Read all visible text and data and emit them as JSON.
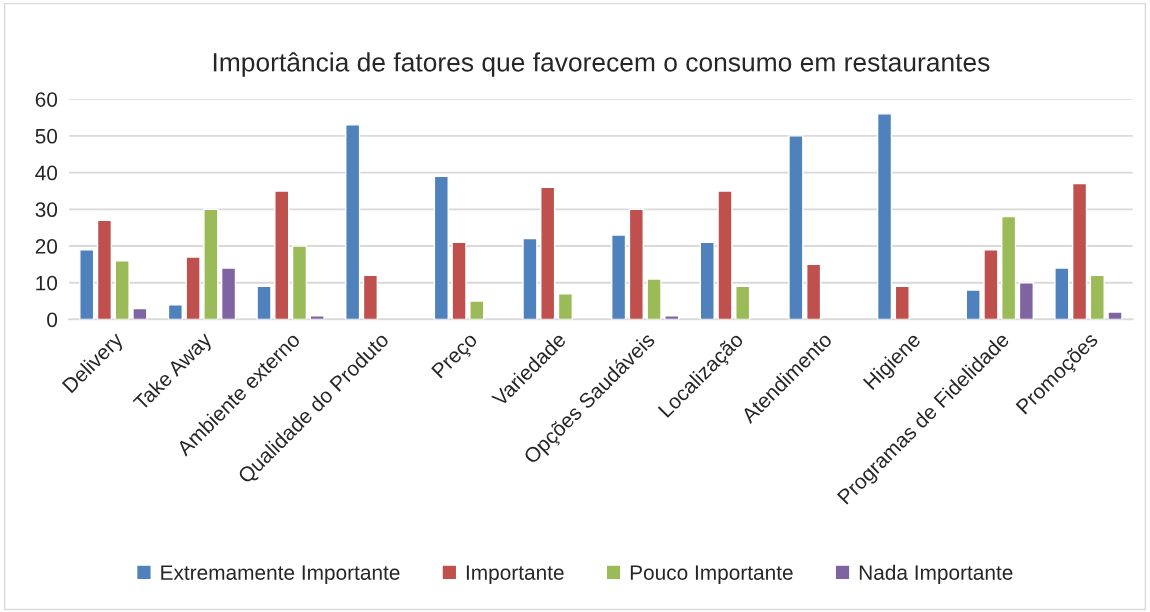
{
  "chart_data": {
    "type": "bar",
    "title": "Importância de fatores que favorecem o consumo em restaurantes",
    "categories": [
      "Delivery",
      "Take Away",
      "Ambiente externo",
      "Qualidade do Produto",
      "Preço",
      "Variedade",
      "Opções Saudáveis",
      "Localização",
      "Atendimento",
      "Higiene",
      "Programas de Fidelidade",
      "Promoções"
    ],
    "series": [
      {
        "name": "Extremamente Importante",
        "color": "#4f81bd",
        "values": [
          19,
          4,
          9,
          53,
          39,
          22,
          23,
          21,
          50,
          56,
          8,
          14
        ]
      },
      {
        "name": "Importante",
        "color": "#c0504d",
        "values": [
          27,
          17,
          35,
          12,
          21,
          36,
          30,
          35,
          15,
          9,
          19,
          37
        ]
      },
      {
        "name": "Pouco Importante",
        "color": "#9bbb59",
        "values": [
          16,
          30,
          20,
          null,
          5,
          7,
          11,
          9,
          null,
          null,
          28,
          12
        ]
      },
      {
        "name": "Nada Importante",
        "color": "#8064a2",
        "values": [
          3,
          14,
          1,
          null,
          null,
          null,
          1,
          null,
          null,
          null,
          10,
          2
        ]
      }
    ],
    "ylim": [
      0,
      60
    ],
    "yticks": [
      0,
      10,
      20,
      30,
      40,
      50,
      60
    ],
    "grid": "y",
    "legend": "bottom"
  }
}
